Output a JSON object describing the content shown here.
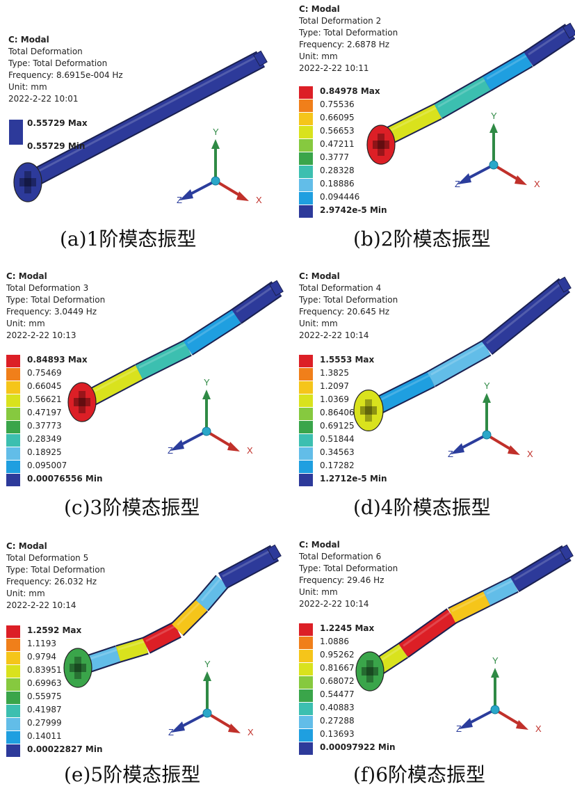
{
  "panels": [
    {
      "info": [
        "C: Modal",
        "Total Deformation",
        "Type: Total Deformation",
        "Frequency: 8.6915e-004 Hz",
        "Unit: mm",
        "2022-2-22 10:01"
      ],
      "legend": [
        "0.55729 Max",
        "0.55729 Min"
      ],
      "caption": "(a)1阶模态振型",
      "axes": {
        "x": "X",
        "y": "Y",
        "z": "Z"
      }
    },
    {
      "info": [
        "C: Modal",
        "Total Deformation 2",
        "Type: Total Deformation",
        "Frequency: 2.6878 Hz",
        "Unit: mm",
        "2022-2-22 10:11"
      ],
      "legend": [
        "0.84978 Max",
        "0.75536",
        "0.66095",
        "0.56653",
        "0.47211",
        "0.3777",
        "0.28328",
        "0.18886",
        "0.094446",
        "2.9742e-5 Min"
      ],
      "caption": "(b)2阶模态振型",
      "axes": {
        "x": "X",
        "y": "Y",
        "z": "Z"
      }
    },
    {
      "info": [
        "C: Modal",
        "Total Deformation 3",
        "Type: Total Deformation",
        "Frequency: 3.0449 Hz",
        "Unit: mm",
        "2022-2-22 10:13"
      ],
      "legend": [
        "0.84893 Max",
        "0.75469",
        "0.66045",
        "0.56621",
        "0.47197",
        "0.37773",
        "0.28349",
        "0.18925",
        "0.095007",
        "0.00076556 Min"
      ],
      "caption": "(c)3阶模态振型",
      "axes": {
        "x": "X",
        "y": "Y",
        "z": "Z"
      }
    },
    {
      "info": [
        "C: Modal",
        "Total Deformation 4",
        "Type: Total Deformation",
        "Frequency: 20.645 Hz",
        "Unit: mm",
        "2022-2-22 10:14"
      ],
      "legend": [
        "1.5553 Max",
        "1.3825",
        "1.2097",
        "1.0369",
        "0.86406",
        "0.69125",
        "0.51844",
        "0.34563",
        "0.17282",
        "1.2712e-5 Min"
      ],
      "caption": "(d)4阶模态振型",
      "axes": {
        "x": "X",
        "y": "Y",
        "z": "Z"
      }
    },
    {
      "info": [
        "C: Modal",
        "Total Deformation 5",
        "Type: Total Deformation",
        "Frequency: 26.032 Hz",
        "Unit: mm",
        "2022-2-22 10:14"
      ],
      "legend": [
        "1.2592 Max",
        "1.1193",
        "0.9794",
        "0.83951",
        "0.69963",
        "0.55975",
        "0.41987",
        "0.27999",
        "0.14011",
        "0.00022827 Min"
      ],
      "caption": "(e)5阶模态振型",
      "axes": {
        "x": "X",
        "y": "Y",
        "z": "Z"
      }
    },
    {
      "info": [
        "C: Modal",
        "Total Deformation 6",
        "Type: Total Deformation",
        "Frequency: 29.46 Hz",
        "Unit: mm",
        "2022-2-22 10:14"
      ],
      "legend": [
        "1.2245 Max",
        "1.0886",
        "0.95262",
        "0.81667",
        "0.68072",
        "0.54477",
        "0.40883",
        "0.27288",
        "0.13693",
        "0.00097922 Min"
      ],
      "caption": "(f)6阶模态振型",
      "axes": {
        "x": "X",
        "y": "Y",
        "z": "Z"
      }
    }
  ],
  "colors": {
    "scale": [
      "#dc1f26",
      "#f07f1a",
      "#f5c51a",
      "#d9e21d",
      "#86c93f",
      "#3aa54a",
      "#3cbfb0",
      "#62bde8",
      "#1f9fe0",
      "#2d3a9a"
    ],
    "uniform": "#2d3a9a",
    "axis_x": "#c0302a",
    "axis_y": "#2f8a45",
    "axis_z": "#2b3d9c",
    "axis_origin": "#2aa7c9"
  }
}
